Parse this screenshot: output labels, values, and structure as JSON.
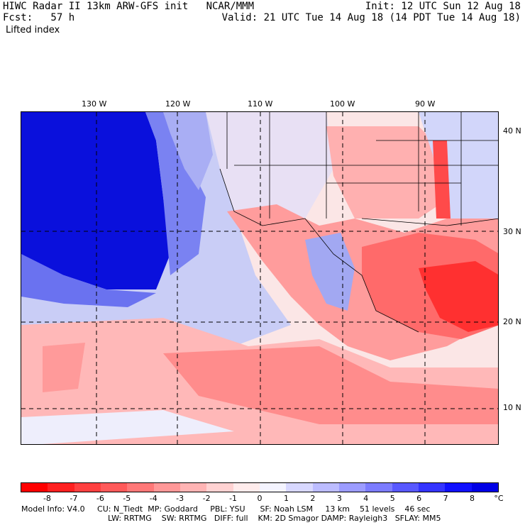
{
  "header": {
    "line1_left": "HIWC Radar II 13km ARW-GFS init   NCAR/MMM",
    "line2_left": "Fcst:   57 h",
    "line1_right": "Init: 12 UTC Sun 12 Aug 18",
    "line2_right": "Valid: 21 UTC Tue 14 Aug 18 (14 PDT Tue 14 Aug 18)",
    "field": "Lifted index"
  },
  "longitudes": [
    "130 W",
    "120 W",
    "110 W",
    "100 W",
    "90 W"
  ],
  "latitudes": [
    "40 N",
    "30 N",
    "20 N",
    "10 N"
  ],
  "colorbar": {
    "ticks": [
      "-8",
      "-7",
      "-6",
      "-5",
      "-4",
      "-3",
      "-2",
      "-1",
      "0",
      "1",
      "2",
      "3",
      "4",
      "5",
      "6",
      "7",
      "8"
    ],
    "unit": "°C",
    "colors": [
      "#ff0000",
      "#ff2020",
      "#ff4040",
      "#ff5a5a",
      "#ff7878",
      "#ff9898",
      "#ffb4b4",
      "#ffd2d2",
      "#ffecec",
      "#f4f4ff",
      "#d8d8ff",
      "#bcbcff",
      "#9c9cff",
      "#7c7cff",
      "#5858ff",
      "#3434ff",
      "#1010ff",
      "#0000e6"
    ]
  },
  "footer": {
    "line1": "Model Info: V4.0     CU: N_Tiedt  MP: Goddard     PBL: YSU      SF: Noah LSM     13 km    51 levels    46 sec",
    "line2": "LW: RRTMG    SW: RRTMG   DIFF: full    KM: 2D Smagor DAMP: Rayleigh3   SFLAY: MM5"
  }
}
